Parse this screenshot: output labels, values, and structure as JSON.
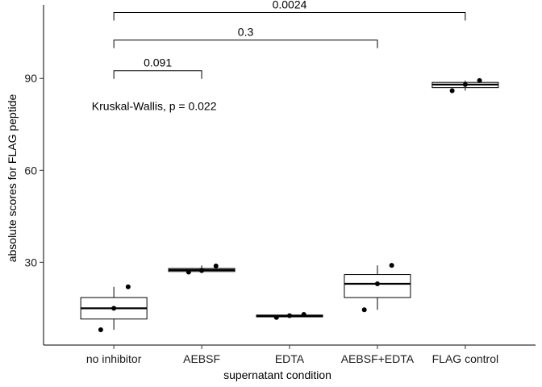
{
  "chart_data": {
    "type": "box",
    "xlabel": "supernatant condition",
    "ylabel": "absolute scores for FLAG peptide",
    "categories": [
      "no inhibitor",
      "AEBSF",
      "EDTA",
      "AEBSF+EDTA",
      "FLAG control"
    ],
    "yticks": [
      30,
      60,
      90
    ],
    "ylim": [
      3,
      114
    ],
    "grid": false,
    "boxes": [
      {
        "category": "no inhibitor",
        "min": 8,
        "q1": 11.5,
        "median": 15,
        "q3": 18.5,
        "max": 22,
        "points": [
          8,
          15,
          22
        ]
      },
      {
        "category": "AEBSF",
        "min": 26.8,
        "q1": 27,
        "median": 27.5,
        "q3": 28,
        "max": 29,
        "points": [
          26.8,
          27.3,
          28.8
        ]
      },
      {
        "category": "EDTA",
        "min": 12,
        "q1": 12.2,
        "median": 12.5,
        "q3": 12.8,
        "max": 13,
        "points": [
          12,
          12.6,
          13
        ]
      },
      {
        "category": "AEBSF+EDTA",
        "min": 14.5,
        "q1": 18.5,
        "median": 23,
        "q3": 26,
        "max": 29,
        "points": [
          14.5,
          23,
          29
        ]
      },
      {
        "category": "FLAG control",
        "min": 86,
        "q1": 87,
        "median": 88,
        "q3": 88.7,
        "max": 89.3,
        "points": [
          86,
          88,
          89.3
        ]
      }
    ],
    "comparisons": [
      {
        "from": "no inhibitor",
        "to": "AEBSF",
        "label": "0.091",
        "y": 92.5
      },
      {
        "from": "no inhibitor",
        "to": "AEBSF+EDTA",
        "label": "0.3",
        "y": 102.5
      },
      {
        "from": "no inhibitor",
        "to": "FLAG control",
        "label": "0.0024",
        "y": 111.5
      }
    ],
    "annotation": {
      "text": "Kruskal-Wallis, p = 0.022",
      "x": "no inhibitor",
      "y": 81
    }
  }
}
